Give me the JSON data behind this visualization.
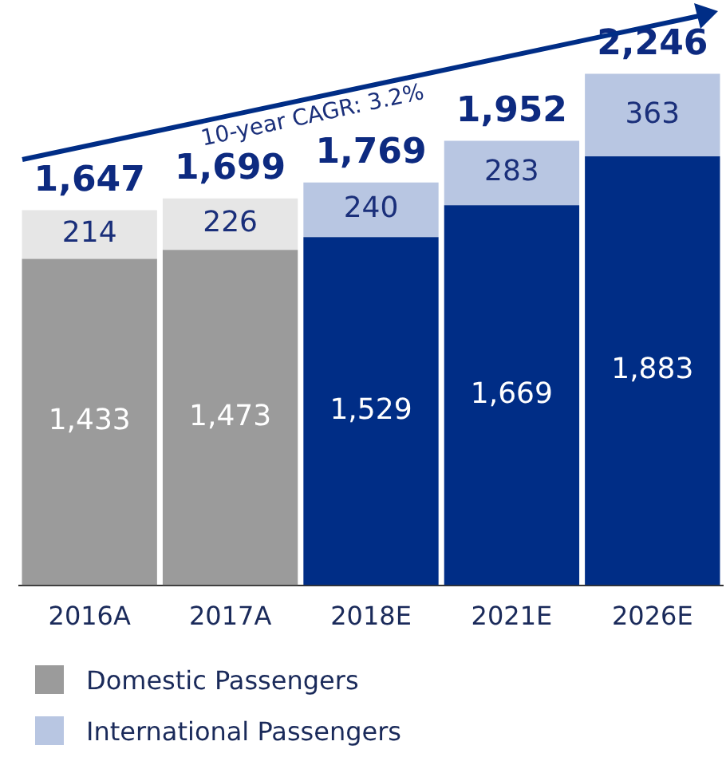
{
  "chart_data": {
    "type": "bar",
    "stacked": true,
    "categories": [
      "2016A",
      "2017A",
      "2018E",
      "2021E",
      "2026E"
    ],
    "series": [
      {
        "name": "Domestic Passengers",
        "color": "#9b9b9b",
        "colors": [
          "#9b9b9b",
          "#9b9b9b",
          "#002d86",
          "#002d86",
          "#002d86"
        ],
        "values": [
          1433,
          1473,
          1529,
          1669,
          1883
        ],
        "value_labels": [
          "1,433",
          "1,473",
          "1,529",
          "1,669",
          "1,883"
        ]
      },
      {
        "name": "International Passengers",
        "color": "#b8c6e2",
        "colors": [
          "#e6e6e6",
          "#e6e6e6",
          "#b8c6e2",
          "#b8c6e2",
          "#b8c6e2"
        ],
        "values": [
          214,
          226,
          240,
          283,
          363
        ],
        "value_labels": [
          "214",
          "226",
          "240",
          "283",
          "363"
        ]
      }
    ],
    "totals": [
      "1,647",
      "1,699",
      "1,769",
      "1,952",
      "2,246"
    ],
    "tick_labels": "x",
    "grid": false,
    "legend": "bottom",
    "annotations": [
      "10-year CAGR: 3.2%"
    ]
  }
}
